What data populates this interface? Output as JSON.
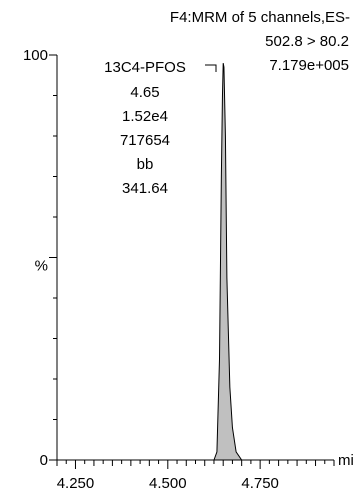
{
  "header": {
    "line1": "F4:MRM of 5 channels,ES-",
    "line2": "502.8 > 80.2",
    "line3": "7.179e+005"
  },
  "annotation": {
    "name": "13C4-PFOS",
    "rt": "4.65",
    "height": "1.52e4",
    "area": "717654",
    "flag": "bb",
    "sn": "341.64"
  },
  "chart_data": {
    "type": "area",
    "title": "F4:MRM of 5 channels,ES-",
    "xlabel": "min",
    "ylabel": "%",
    "xlim": [
      4.2,
      4.95
    ],
    "ylim": [
      0,
      100
    ],
    "x_ticks": [
      "4.250",
      "4.500",
      "4.750"
    ],
    "y_ticks": [
      "0",
      "100"
    ],
    "series": [
      {
        "x": [
          4.2,
          4.6,
          4.625,
          4.633,
          4.64,
          4.645,
          4.648,
          4.65,
          4.652,
          4.656,
          4.66,
          4.668,
          4.675,
          4.685,
          4.7,
          4.95
        ],
        "y": [
          0,
          0,
          0,
          2,
          25,
          70,
          90,
          98,
          97,
          80,
          45,
          18,
          8,
          2,
          0,
          0
        ]
      }
    ],
    "peak_annotation": {
      "rt": 4.65,
      "label": "13C4-PFOS"
    }
  }
}
